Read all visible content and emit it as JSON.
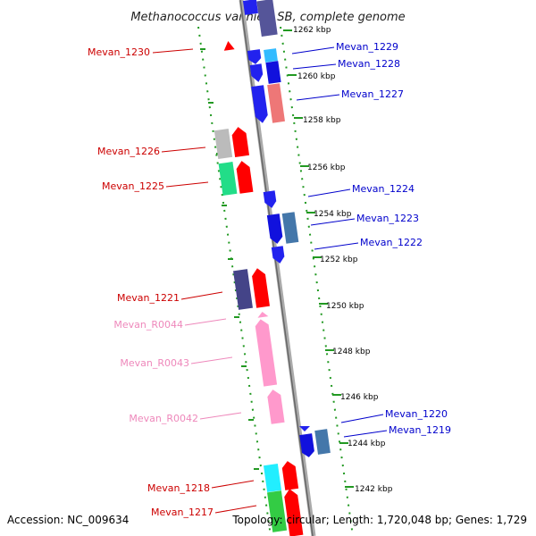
{
  "title": "Methanococcus vannielii SB, complete genome",
  "accession": "Accession: NC_009634",
  "topology": "Topology: circular; Length: 1,720,048 bp; Genes: 1,729",
  "colors": {
    "forward_label": "#cc0000",
    "reverse_label": "#0000cc",
    "rna_label": "#ee88bb",
    "backbone": "#888888",
    "scale_dots": "#229922"
  },
  "ticks": [
    "1262 kbp",
    "1260 kbp",
    "1258 kbp",
    "1256 kbp",
    "1254 kbp",
    "1252 kbp",
    "1250 kbp",
    "1248 kbp",
    "1246 kbp",
    "1244 kbp",
    "1242 kbp"
  ],
  "gene_labels": [
    {
      "text": "Mevan_1230",
      "strand": "forward"
    },
    {
      "text": "Mevan_1229",
      "strand": "reverse"
    },
    {
      "text": "Mevan_1228",
      "strand": "reverse"
    },
    {
      "text": "Mevan_1227",
      "strand": "reverse"
    },
    {
      "text": "Mevan_1226",
      "strand": "forward"
    },
    {
      "text": "Mevan_1225",
      "strand": "forward"
    },
    {
      "text": "Mevan_1224",
      "strand": "reverse"
    },
    {
      "text": "Mevan_1223",
      "strand": "reverse"
    },
    {
      "text": "Mevan_1222",
      "strand": "reverse"
    },
    {
      "text": "Mevan_1221",
      "strand": "forward"
    },
    {
      "text": "Mevan_R0044",
      "strand": "rna"
    },
    {
      "text": "Mevan_R0043",
      "strand": "rna"
    },
    {
      "text": "Mevan_R0042",
      "strand": "rna"
    },
    {
      "text": "Mevan_1220",
      "strand": "reverse"
    },
    {
      "text": "Mevan_1219",
      "strand": "reverse"
    },
    {
      "text": "Mevan_1218",
      "strand": "forward"
    },
    {
      "text": "Mevan_1217",
      "strand": "forward"
    }
  ]
}
